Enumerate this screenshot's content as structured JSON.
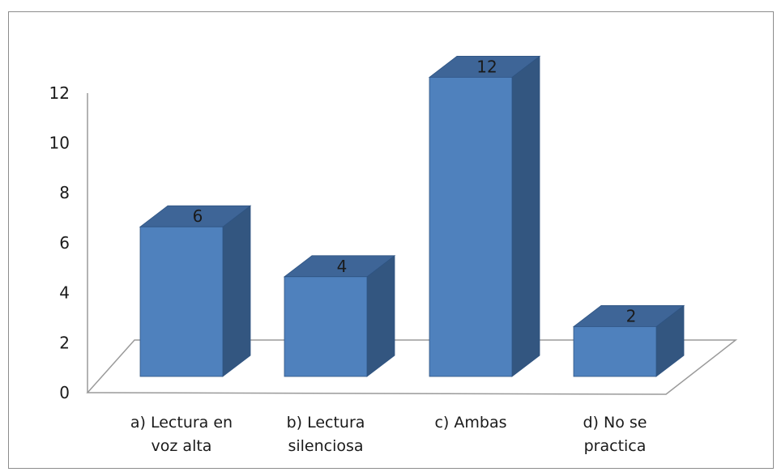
{
  "chart_data": {
    "type": "bar",
    "style": "3d-column",
    "categories": [
      [
        "a) Lectura en",
        "voz alta"
      ],
      [
        "b) Lectura",
        "silenciosa"
      ],
      [
        "c) Ambas"
      ],
      [
        "d) No se",
        "practica"
      ]
    ],
    "values": [
      6,
      4,
      12,
      2
    ],
    "data_labels": [
      "6",
      "4",
      "12",
      "2"
    ],
    "y_ticks": [
      "0",
      "2",
      "4",
      "6",
      "8",
      "10",
      "12"
    ],
    "ylim": [
      0,
      12
    ],
    "grid": false,
    "legend": "none",
    "colors": {
      "front": "#4f81bd",
      "side": "#335680",
      "top": "#3e6597",
      "edge": "#2f5482",
      "axis": "#9a9a9a"
    }
  }
}
